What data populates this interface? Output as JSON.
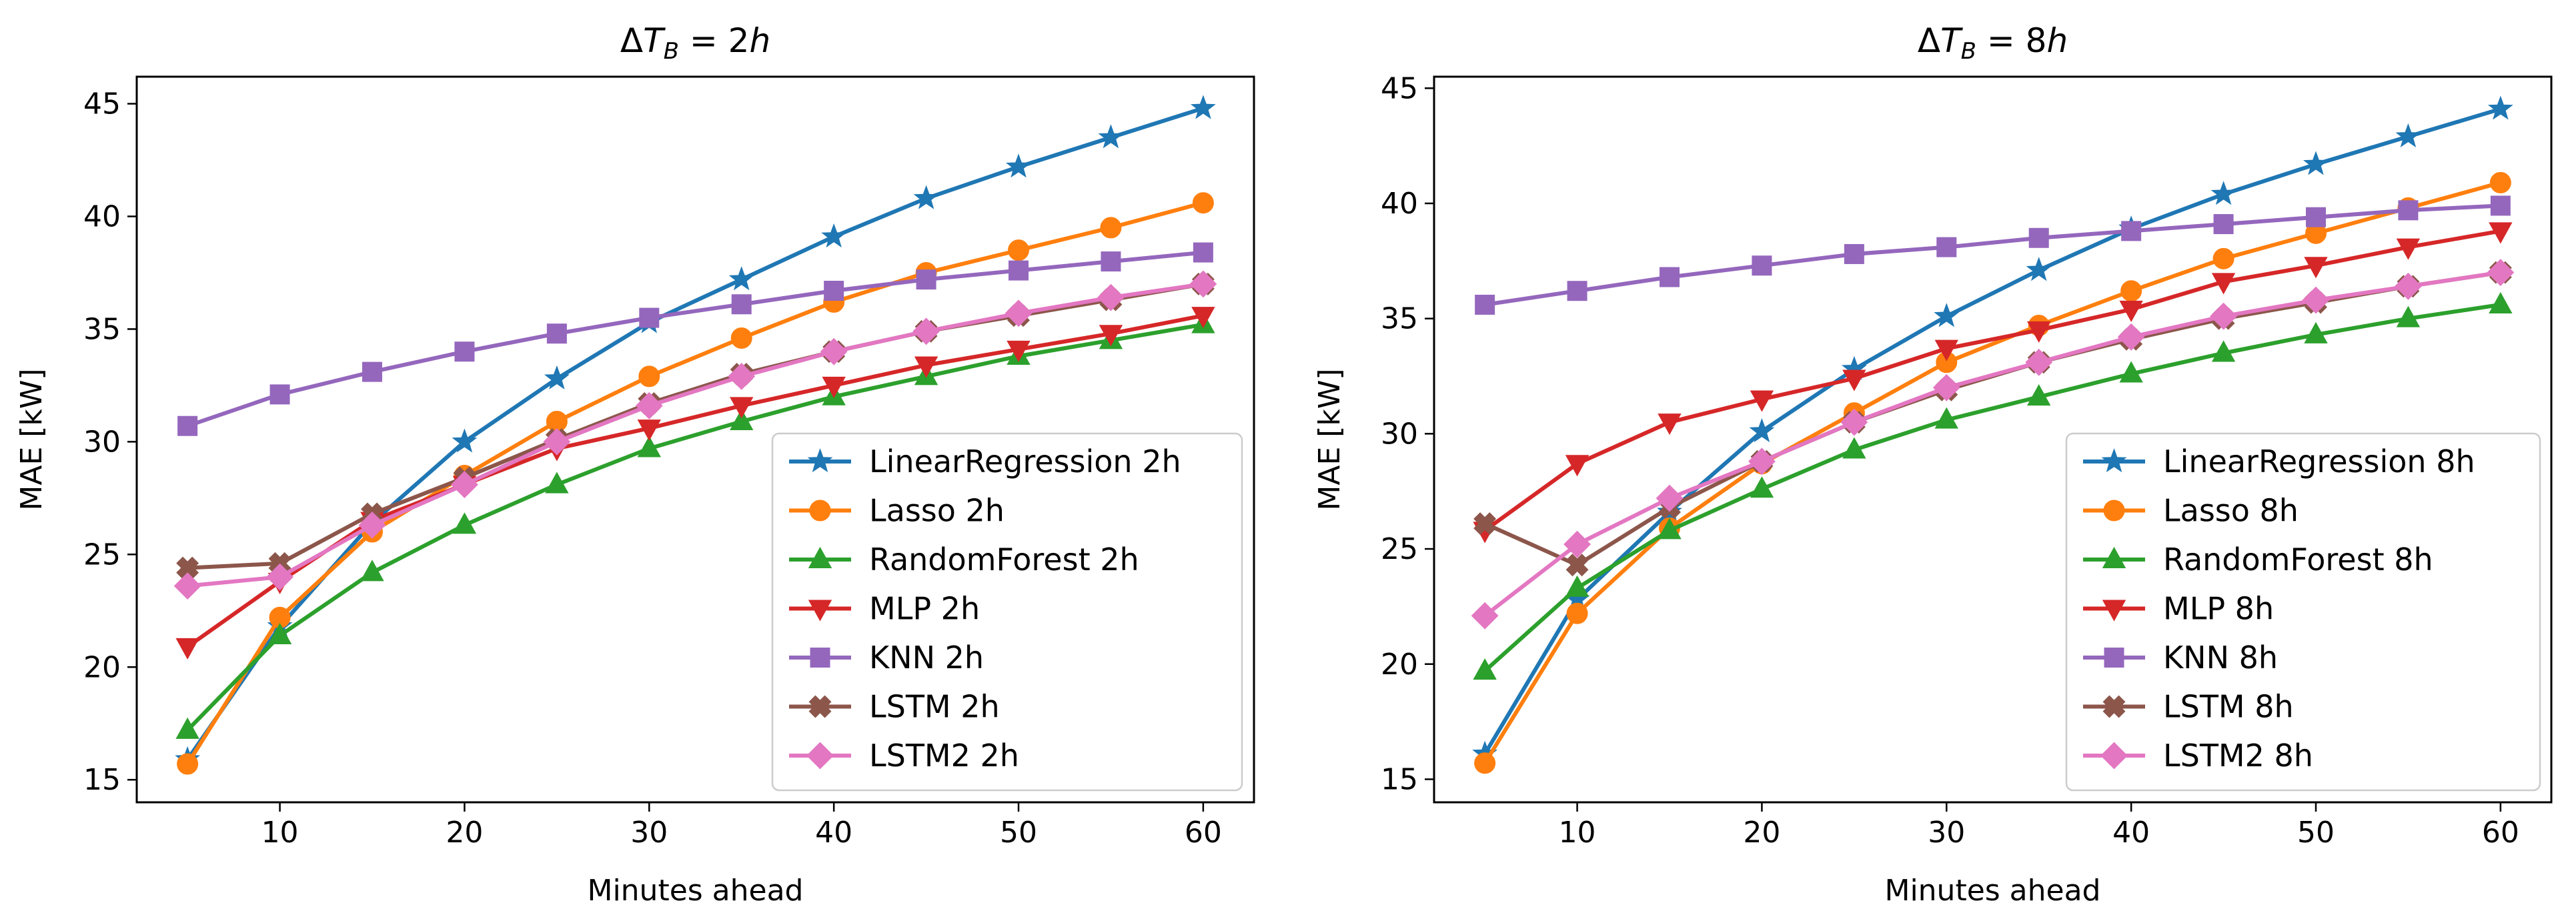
{
  "chart_data": [
    {
      "type": "line",
      "title": "ΔT_B = 2h",
      "title_parts": {
        "delta": "Δ",
        "var": "T",
        "sub": "B",
        "rest": " = 2",
        "unit": "h"
      },
      "xlabel": "Minutes ahead",
      "ylabel": "MAE [kW]",
      "xlim": [
        2.25,
        62.75
      ],
      "ylim": [
        14.0,
        46.2
      ],
      "xticks": [
        10,
        20,
        30,
        40,
        50,
        60
      ],
      "yticks": [
        15,
        20,
        25,
        30,
        35,
        40,
        45
      ],
      "legend_position": "lower-right",
      "x": [
        5,
        10,
        15,
        20,
        25,
        30,
        35,
        40,
        45,
        50,
        55,
        60
      ],
      "series": [
        {
          "name": "LinearRegression 2h",
          "color": "#1f77b4",
          "marker": "star",
          "values": [
            15.9,
            21.8,
            26.4,
            30.0,
            32.8,
            35.3,
            37.2,
            39.1,
            40.8,
            42.2,
            43.5,
            44.8
          ]
        },
        {
          "name": "Lasso 2h",
          "color": "#ff7f0e",
          "marker": "circle",
          "values": [
            15.7,
            22.2,
            26.0,
            28.5,
            30.9,
            32.9,
            34.6,
            36.2,
            37.5,
            38.5,
            39.5,
            40.6
          ]
        },
        {
          "name": "RandomForest 2h",
          "color": "#2ca02c",
          "marker": "triangle-up",
          "values": [
            17.2,
            21.4,
            24.2,
            26.3,
            28.1,
            29.7,
            30.9,
            32.0,
            32.9,
            33.8,
            34.5,
            35.2
          ]
        },
        {
          "name": "MLP 2h",
          "color": "#d62728",
          "marker": "triangle-down",
          "values": [
            20.9,
            23.8,
            26.5,
            28.1,
            29.7,
            30.6,
            31.6,
            32.5,
            33.4,
            34.1,
            34.8,
            35.6
          ]
        },
        {
          "name": "KNN 2h",
          "color": "#9467bd",
          "marker": "square",
          "values": [
            30.7,
            32.1,
            33.1,
            34.0,
            34.8,
            35.5,
            36.1,
            36.7,
            37.2,
            37.6,
            38.0,
            38.4
          ]
        },
        {
          "name": "LSTM 2h",
          "color": "#8c564b",
          "marker": "plus-thick",
          "values": [
            24.4,
            24.6,
            26.8,
            28.4,
            30.1,
            31.7,
            33.0,
            34.0,
            34.9,
            35.6,
            36.3,
            37.0
          ]
        },
        {
          "name": "LSTM2 2h",
          "color": "#e377c2",
          "marker": "diamond",
          "values": [
            23.6,
            24.0,
            26.3,
            28.1,
            30.0,
            31.6,
            32.9,
            34.0,
            34.9,
            35.7,
            36.4,
            37.0
          ]
        }
      ]
    },
    {
      "type": "line",
      "title": "ΔT_B = 8h",
      "title_parts": {
        "delta": "Δ",
        "var": "T",
        "sub": "B",
        "rest": " = 8",
        "unit": "h"
      },
      "xlabel": "Minutes ahead",
      "ylabel": "MAE [kW]",
      "xlim": [
        2.25,
        62.75
      ],
      "ylim": [
        14.0,
        45.5
      ],
      "xticks": [
        10,
        20,
        30,
        40,
        50,
        60
      ],
      "yticks": [
        15,
        20,
        25,
        30,
        35,
        40,
        45
      ],
      "legend_position": "lower-right",
      "x": [
        5,
        10,
        15,
        20,
        25,
        30,
        35,
        40,
        45,
        50,
        55,
        60
      ],
      "series": [
        {
          "name": "LinearRegression 8h",
          "color": "#1f77b4",
          "marker": "star",
          "values": [
            16.1,
            22.8,
            26.6,
            30.1,
            32.8,
            35.1,
            37.1,
            38.9,
            40.4,
            41.7,
            42.9,
            44.1
          ]
        },
        {
          "name": "Lasso 8h",
          "color": "#ff7f0e",
          "marker": "circle",
          "values": [
            15.7,
            22.2,
            25.9,
            28.7,
            30.9,
            33.1,
            34.7,
            36.2,
            37.6,
            38.7,
            39.8,
            40.9
          ]
        },
        {
          "name": "RandomForest 8h",
          "color": "#2ca02c",
          "marker": "triangle-up",
          "values": [
            19.7,
            23.3,
            25.8,
            27.6,
            29.3,
            30.6,
            31.6,
            32.6,
            33.5,
            34.3,
            35.0,
            35.6
          ]
        },
        {
          "name": "MLP 8h",
          "color": "#d62728",
          "marker": "triangle-down",
          "values": [
            25.8,
            28.7,
            30.5,
            31.5,
            32.4,
            33.7,
            34.5,
            35.4,
            36.6,
            37.3,
            38.1,
            38.8
          ]
        },
        {
          "name": "KNN 8h",
          "color": "#9467bd",
          "marker": "square",
          "values": [
            35.6,
            36.2,
            36.8,
            37.3,
            37.8,
            38.1,
            38.5,
            38.8,
            39.1,
            39.4,
            39.7,
            39.9
          ]
        },
        {
          "name": "LSTM 8h",
          "color": "#8c564b",
          "marker": "plus-thick",
          "values": [
            26.1,
            24.3,
            26.8,
            28.8,
            30.5,
            31.9,
            33.1,
            34.1,
            35.0,
            35.7,
            36.4,
            37.0
          ]
        },
        {
          "name": "LSTM2 8h",
          "color": "#e377c2",
          "marker": "diamond",
          "values": [
            22.1,
            25.2,
            27.2,
            28.8,
            30.5,
            32.0,
            33.1,
            34.2,
            35.1,
            35.8,
            36.4,
            37.0
          ]
        }
      ]
    }
  ]
}
